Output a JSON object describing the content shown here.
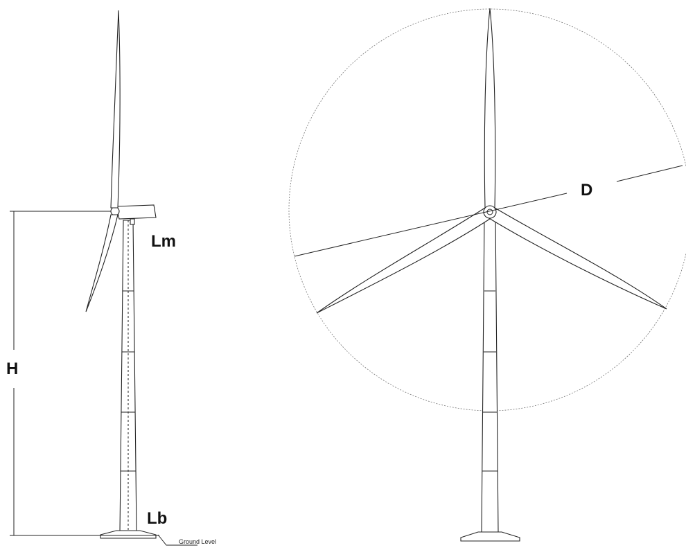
{
  "side_view": {
    "nacelle_label": "Lm",
    "height_label": "H",
    "base_label": "Lb",
    "ground_label": "Ground Level"
  },
  "front_view": {
    "diameter_label": "D"
  }
}
